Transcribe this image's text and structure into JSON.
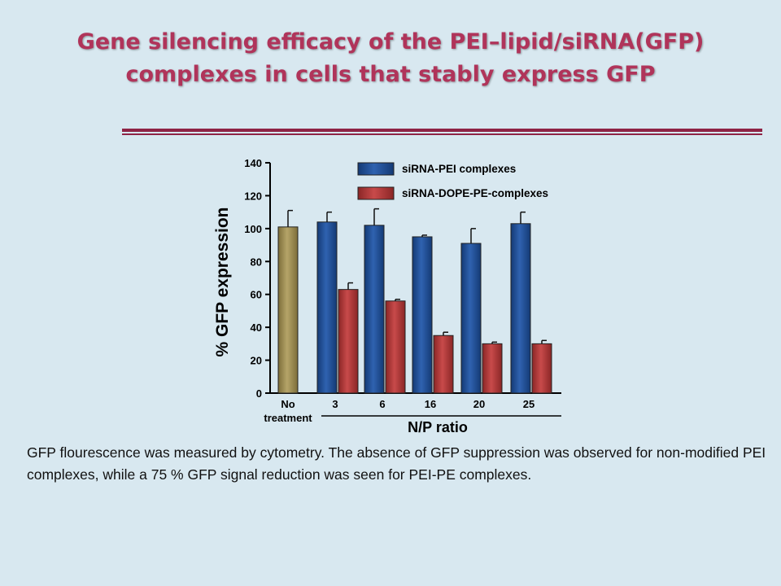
{
  "slide": {
    "title_line1": "Gene silencing efficacy of the PEI–lipid/siRNA(GFP)",
    "title_line2": "complexes in cells that stably express GFP",
    "caption": "GFP flourescence was measured by cytometry. The absence of GFP suppression was observed for non-modified PEI complexes, while a 75 % GFP signal reduction was seen for PEI-PE complexes."
  },
  "colors": {
    "title": "#b0345a",
    "rule": "#8e2445",
    "background": "#d8e8f0",
    "no_treatment": "#a09055",
    "pei": "#1f4d94",
    "dope": "#b23a3a"
  },
  "chart_data": {
    "type": "bar",
    "ylabel": "% GFP expression",
    "xlabel": "N/P ratio",
    "ylim": [
      0,
      140
    ],
    "yticks": [
      0,
      20,
      40,
      60,
      80,
      100,
      120,
      140
    ],
    "categories": [
      "3",
      "6",
      "16",
      "20",
      "25"
    ],
    "control": {
      "label_line1": "No",
      "label_line2": "treatment",
      "value": 101,
      "error": 10
    },
    "series": [
      {
        "name": "siRNA-PEI complexes",
        "values": [
          104,
          102,
          95,
          91,
          103
        ],
        "errors": [
          6,
          10,
          1,
          9,
          7
        ]
      },
      {
        "name": "siRNA-DOPE-PE-complexes",
        "values": [
          63,
          56,
          35,
          30,
          30
        ],
        "errors": [
          4,
          1,
          2,
          1,
          2
        ]
      }
    ],
    "legend_position": "top-right",
    "grid": false
  }
}
